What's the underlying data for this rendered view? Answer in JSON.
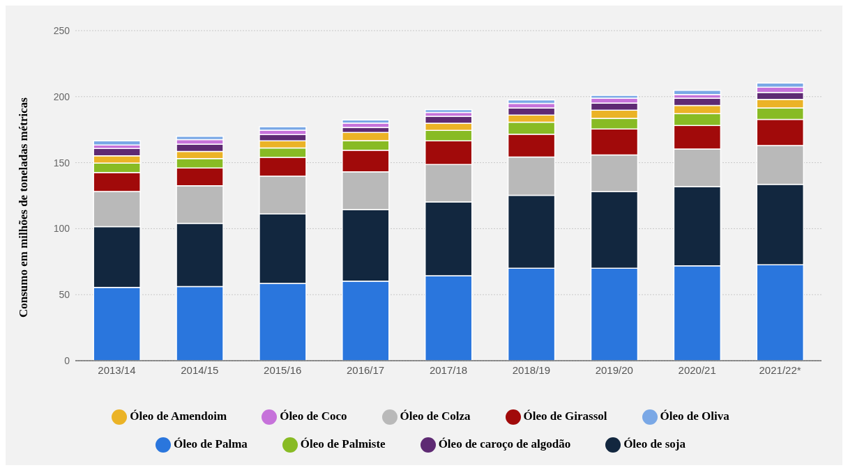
{
  "chart_data": {
    "type": "bar",
    "stacked": true,
    "ylabel": "Consumo em milhões de toneladas métricas",
    "categories": [
      "2013/14",
      "2014/15",
      "2015/16",
      "2016/17",
      "2017/18",
      "2018/19",
      "2019/20",
      "2020/21",
      "2021/22*"
    ],
    "series": [
      {
        "name": "Óleo de Palma",
        "color": "#2a76dd",
        "values": [
          55.5,
          56.2,
          58.5,
          60.3,
          64.4,
          70.0,
          70.0,
          71.8,
          72.6
        ]
      },
      {
        "name": "Óleo de soja",
        "color": "#12273f",
        "values": [
          46.0,
          47.9,
          52.6,
          54.1,
          55.8,
          55.3,
          58.0,
          60.0,
          61.0
        ]
      },
      {
        "name": "Óleo de Colza",
        "color": "#b9b9b9",
        "values": [
          26.6,
          28.4,
          28.7,
          28.7,
          28.4,
          29.0,
          27.8,
          28.6,
          29.4
        ]
      },
      {
        "name": "Óleo de Girassol",
        "color": "#a10a0a",
        "values": [
          14.4,
          13.5,
          14.2,
          16.3,
          18.0,
          17.2,
          19.7,
          17.8,
          19.8
        ]
      },
      {
        "name": "Óleo de Palmiste",
        "color": "#88bb24",
        "values": [
          7.1,
          7.1,
          7.1,
          7.3,
          7.9,
          9.1,
          8.1,
          8.9,
          8.7
        ]
      },
      {
        "name": "Óleo de Amendoim",
        "color": "#ebb326",
        "values": [
          5.6,
          5.4,
          5.5,
          6.2,
          5.3,
          5.4,
          6.1,
          6.2,
          6.4
        ]
      },
      {
        "name": "Óleo de caroço de algodão",
        "color": "#5e2a73",
        "values": [
          5.5,
          5.5,
          4.7,
          3.8,
          5.3,
          5.5,
          5.5,
          5.6,
          5.3
        ]
      },
      {
        "name": "Óleo de Coco",
        "color": "#c672da",
        "values": [
          2.7,
          3.4,
          3.3,
          3.3,
          2.9,
          3.4,
          3.6,
          2.7,
          4.0
        ]
      },
      {
        "name": "Óleo de Oliva",
        "color": "#7aa8e6",
        "values": [
          3.1,
          2.6,
          2.6,
          2.4,
          2.2,
          2.6,
          2.2,
          3.2,
          3.1
        ]
      }
    ],
    "ylim": [
      0,
      250
    ],
    "yticks": [
      0,
      50,
      100,
      150,
      200,
      250
    ],
    "grid": "y",
    "legend": "bottom"
  }
}
